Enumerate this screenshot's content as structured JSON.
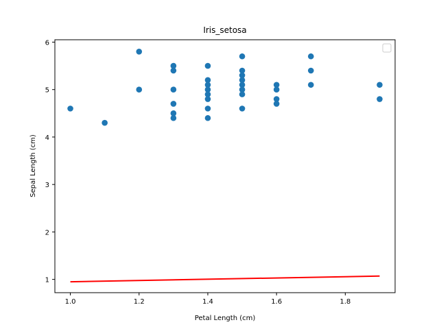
{
  "chart_data": {
    "type": "scatter",
    "title": "Iris_setosa",
    "xlabel": "Petal Length (cm)",
    "ylabel": "Sepal Length (cm)",
    "xlim": [
      0.955,
      1.945
    ],
    "ylim": [
      0.72,
      6.05
    ],
    "xticks": [
      1.0,
      1.2,
      1.4,
      1.6,
      1.8
    ],
    "xtick_labels": [
      "1.0",
      "1.2",
      "1.4",
      "1.6",
      "1.8"
    ],
    "yticks": [
      1,
      2,
      3,
      4,
      5,
      6
    ],
    "ytick_labels": [
      "1",
      "2",
      "3",
      "4",
      "5",
      "6"
    ],
    "grid": false,
    "legend": {
      "placement": "top-right",
      "entries": []
    },
    "series": [
      {
        "kind": "scatter",
        "color": "#1f77b4",
        "points": [
          [
            1.0,
            4.6
          ],
          [
            1.1,
            4.3
          ],
          [
            1.2,
            5.8
          ],
          [
            1.2,
            5.0
          ],
          [
            1.3,
            5.5
          ],
          [
            1.3,
            5.4
          ],
          [
            1.3,
            5.0
          ],
          [
            1.3,
            4.7
          ],
          [
            1.3,
            4.5
          ],
          [
            1.3,
            4.4
          ],
          [
            1.4,
            5.5
          ],
          [
            1.4,
            5.2
          ],
          [
            1.4,
            5.1
          ],
          [
            1.4,
            5.0
          ],
          [
            1.4,
            4.9
          ],
          [
            1.4,
            4.8
          ],
          [
            1.4,
            4.6
          ],
          [
            1.4,
            4.4
          ],
          [
            1.5,
            5.7
          ],
          [
            1.5,
            5.4
          ],
          [
            1.5,
            5.3
          ],
          [
            1.5,
            5.2
          ],
          [
            1.5,
            5.1
          ],
          [
            1.5,
            5.0
          ],
          [
            1.5,
            4.9
          ],
          [
            1.5,
            4.6
          ],
          [
            1.6,
            5.1
          ],
          [
            1.6,
            5.0
          ],
          [
            1.6,
            4.8
          ],
          [
            1.6,
            4.7
          ],
          [
            1.7,
            5.7
          ],
          [
            1.7,
            5.4
          ],
          [
            1.7,
            5.1
          ],
          [
            1.9,
            5.1
          ],
          [
            1.9,
            4.8
          ]
        ]
      },
      {
        "kind": "line",
        "color": "#ff0000",
        "x": [
          1.0,
          1.9
        ],
        "y": [
          0.95,
          1.07
        ]
      }
    ]
  }
}
